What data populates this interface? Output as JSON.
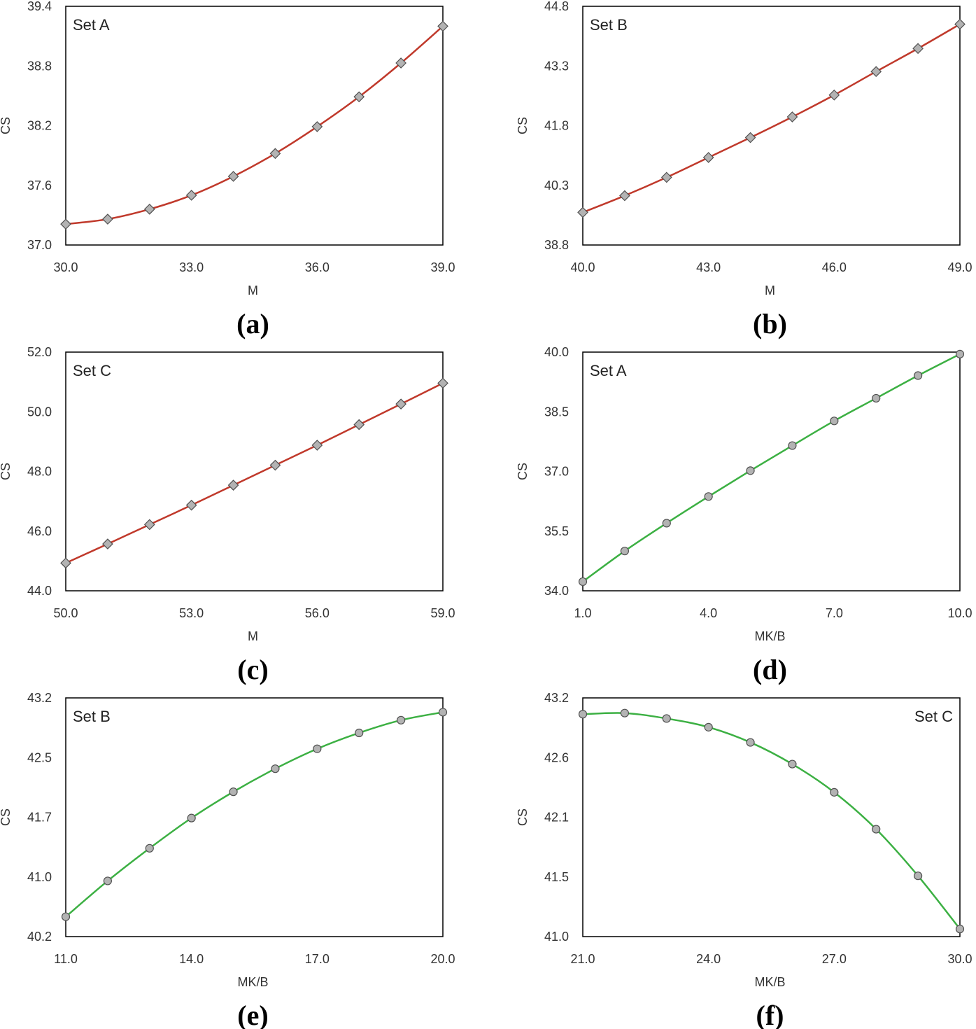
{
  "chart_data": [
    {
      "panel": "(a)",
      "type": "line",
      "set_label": "Set A",
      "xlabel": "M",
      "ylabel": "CS",
      "xlim": [
        30.0,
        39.0
      ],
      "ylim": [
        37.0,
        39.4
      ],
      "xticks": [
        "30.0",
        "33.0",
        "36.0",
        "39.0"
      ],
      "yticks": [
        "37.0",
        "37.6",
        "38.2",
        "38.8",
        "39.4"
      ],
      "x": [
        30,
        31,
        32,
        33,
        34,
        35,
        36,
        37,
        38,
        39
      ],
      "y": [
        37.21,
        37.26,
        37.36,
        37.5,
        37.69,
        37.92,
        38.19,
        38.49,
        38.83,
        39.2
      ],
      "marker": "diamond",
      "line_color": "#c0392b"
    },
    {
      "panel": "(b)",
      "type": "line",
      "set_label": "Set B",
      "xlabel": "M",
      "ylabel": "CS",
      "xlim": [
        40.0,
        49.0
      ],
      "ylim": [
        38.8,
        44.8
      ],
      "xticks": [
        "40.0",
        "43.0",
        "46.0",
        "49.0"
      ],
      "yticks": [
        "38.8",
        "40.3",
        "41.8",
        "43.3",
        "44.8"
      ],
      "x": [
        40,
        41,
        42,
        43,
        44,
        45,
        46,
        47,
        48,
        49
      ],
      "y": [
        39.62,
        40.04,
        40.5,
        41.0,
        41.5,
        42.02,
        42.57,
        43.16,
        43.74,
        44.35
      ],
      "marker": "diamond",
      "line_color": "#c0392b"
    },
    {
      "panel": "(c)",
      "type": "line",
      "set_label": "Set C",
      "xlabel": "M",
      "ylabel": "CS",
      "xlim": [
        50.0,
        59.0
      ],
      "ylim": [
        44.0,
        52.0
      ],
      "xticks": [
        "50.0",
        "53.0",
        "56.0",
        "59.0"
      ],
      "yticks": [
        "44.0",
        "46.0",
        "48.0",
        "50.0",
        "52.0"
      ],
      "x": [
        50,
        51,
        52,
        53,
        54,
        55,
        56,
        57,
        58,
        59
      ],
      "y": [
        44.93,
        45.57,
        46.22,
        46.87,
        47.54,
        48.21,
        48.88,
        49.57,
        50.26,
        50.96
      ],
      "marker": "diamond",
      "line_color": "#c0392b"
    },
    {
      "panel": "(d)",
      "type": "line",
      "set_label": "Set A",
      "xlabel": "MK/B",
      "ylabel": "CS",
      "xlim": [
        1.0,
        10.0
      ],
      "ylim": [
        34.0,
        40.0
      ],
      "xticks": [
        "1.0",
        "4.0",
        "7.0",
        "10.0"
      ],
      "yticks": [
        "34.0",
        "35.5",
        "37.0",
        "38.5",
        "40.0"
      ],
      "x": [
        1,
        2,
        3,
        4,
        5,
        6,
        7,
        8,
        9,
        10
      ],
      "y": [
        34.23,
        35.0,
        35.7,
        36.37,
        37.02,
        37.65,
        38.27,
        38.84,
        39.41,
        39.95
      ],
      "marker": "circle",
      "line_color": "#3cb043"
    },
    {
      "panel": "(e)",
      "type": "line",
      "set_label": "Set B",
      "xlabel": "MK/B",
      "ylabel": "CS",
      "xlim": [
        11.0,
        20.0
      ],
      "ylim": [
        40.2,
        43.2
      ],
      "xticks": [
        "11.0",
        "14.0",
        "17.0",
        "20.0"
      ],
      "yticks": [
        "40.2",
        "41.0",
        "41.7",
        "42.5",
        "43.2"
      ],
      "x": [
        11,
        12,
        13,
        14,
        15,
        16,
        17,
        18,
        19,
        20
      ],
      "y": [
        40.45,
        40.9,
        41.31,
        41.69,
        42.02,
        42.31,
        42.56,
        42.76,
        42.92,
        43.02
      ],
      "marker": "circle",
      "line_color": "#3cb043"
    },
    {
      "panel": "(f)",
      "type": "line",
      "set_label": "Set C",
      "xlabel": "MK/B",
      "ylabel": "CS",
      "xlim": [
        21.0,
        30.0
      ],
      "ylim": [
        41.0,
        43.2
      ],
      "xticks": [
        "21.0",
        "24.0",
        "27.0",
        "30.0"
      ],
      "yticks": [
        "41.0",
        "41.5",
        "42.1",
        "42.6",
        "43.2"
      ],
      "x": [
        21,
        22,
        23,
        24,
        25,
        26,
        27,
        28,
        29,
        30
      ],
      "y": [
        43.05,
        43.06,
        43.01,
        42.93,
        42.79,
        42.59,
        42.33,
        41.99,
        41.56,
        41.07
      ],
      "marker": "circle",
      "line_color": "#3cb043"
    }
  ],
  "marker_fill": "#b3b3b3",
  "marker_stroke": "#505050",
  "frame_color": "#000000"
}
